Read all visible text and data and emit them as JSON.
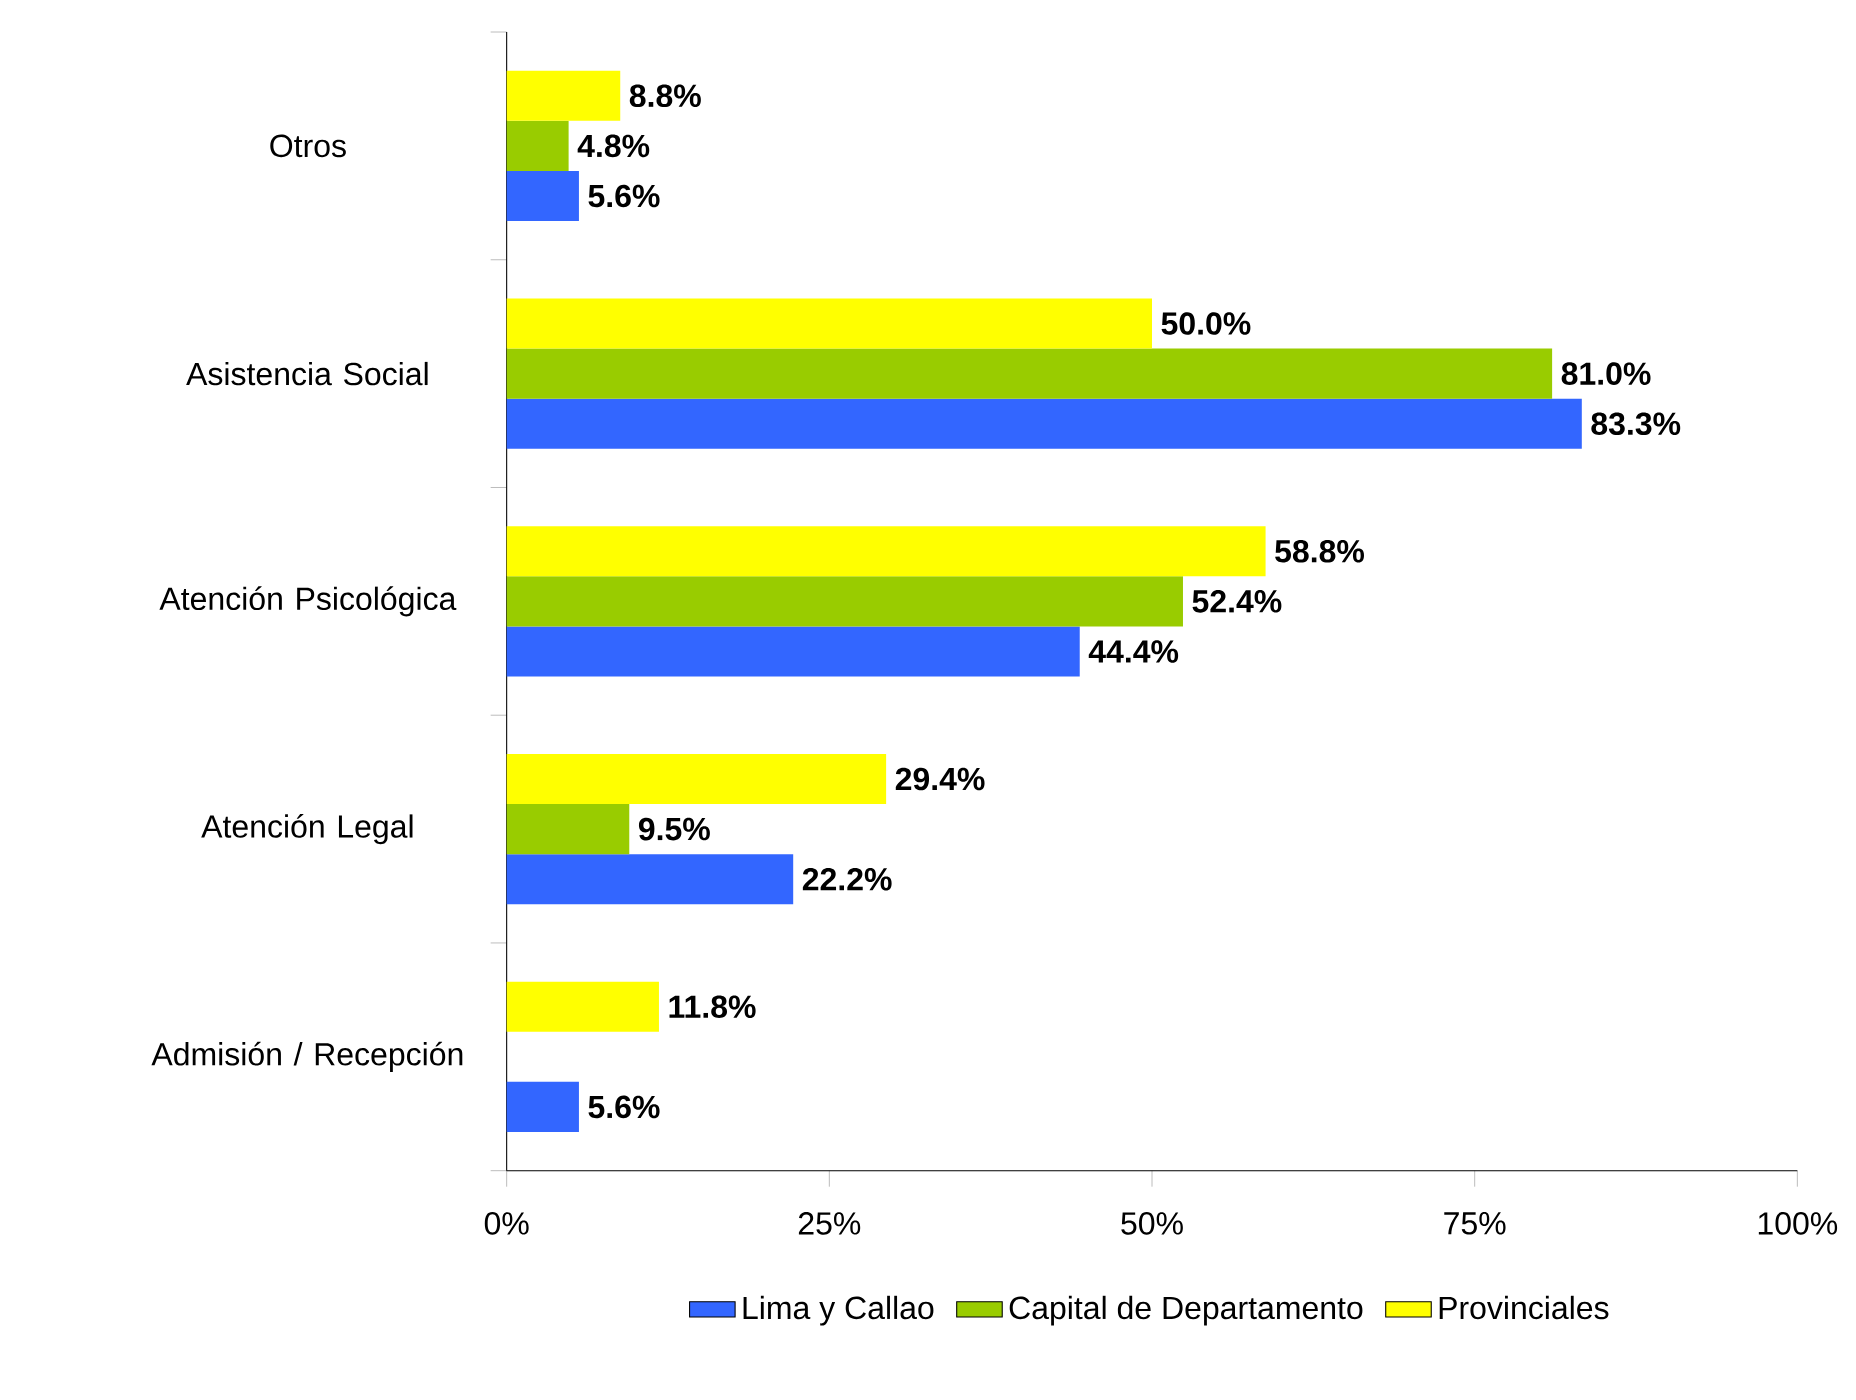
{
  "chart_data": {
    "type": "bar",
    "orientation": "horizontal",
    "categories": [
      "Otros",
      "Asistencia Social",
      "Atención Psicológica",
      "Atención Legal",
      "Admisión / Recepción"
    ],
    "series": [
      {
        "name": "Lima y Callao",
        "color": "#3366ff",
        "values": [
          5.6,
          83.3,
          44.4,
          22.2,
          5.6
        ],
        "value_labels": [
          "5.6%",
          "83.3%",
          "44.4%",
          "22.2%",
          "5.6%"
        ]
      },
      {
        "name": "Capital de Departamento",
        "color": "#99cc00",
        "values": [
          4.8,
          81.0,
          52.4,
          9.5,
          null
        ],
        "value_labels": [
          "4.8%",
          "81.0%",
          "52.4%",
          "9.5%",
          null
        ]
      },
      {
        "name": "Provinciales",
        "color": "#ffff00",
        "values": [
          8.8,
          50.0,
          58.8,
          29.4,
          11.8
        ],
        "value_labels": [
          "8.8%",
          "50.0%",
          "58.8%",
          "29.4%",
          "11.8%"
        ]
      }
    ],
    "xlim": [
      0,
      100
    ],
    "xticks": [
      {
        "value": 0,
        "label": "0%"
      },
      {
        "value": 25,
        "label": "25%"
      },
      {
        "value": 50,
        "label": "50%"
      },
      {
        "value": 75,
        "label": "75%"
      },
      {
        "value": 100,
        "label": "100%"
      }
    ],
    "grid": false,
    "legend": "bottom"
  }
}
